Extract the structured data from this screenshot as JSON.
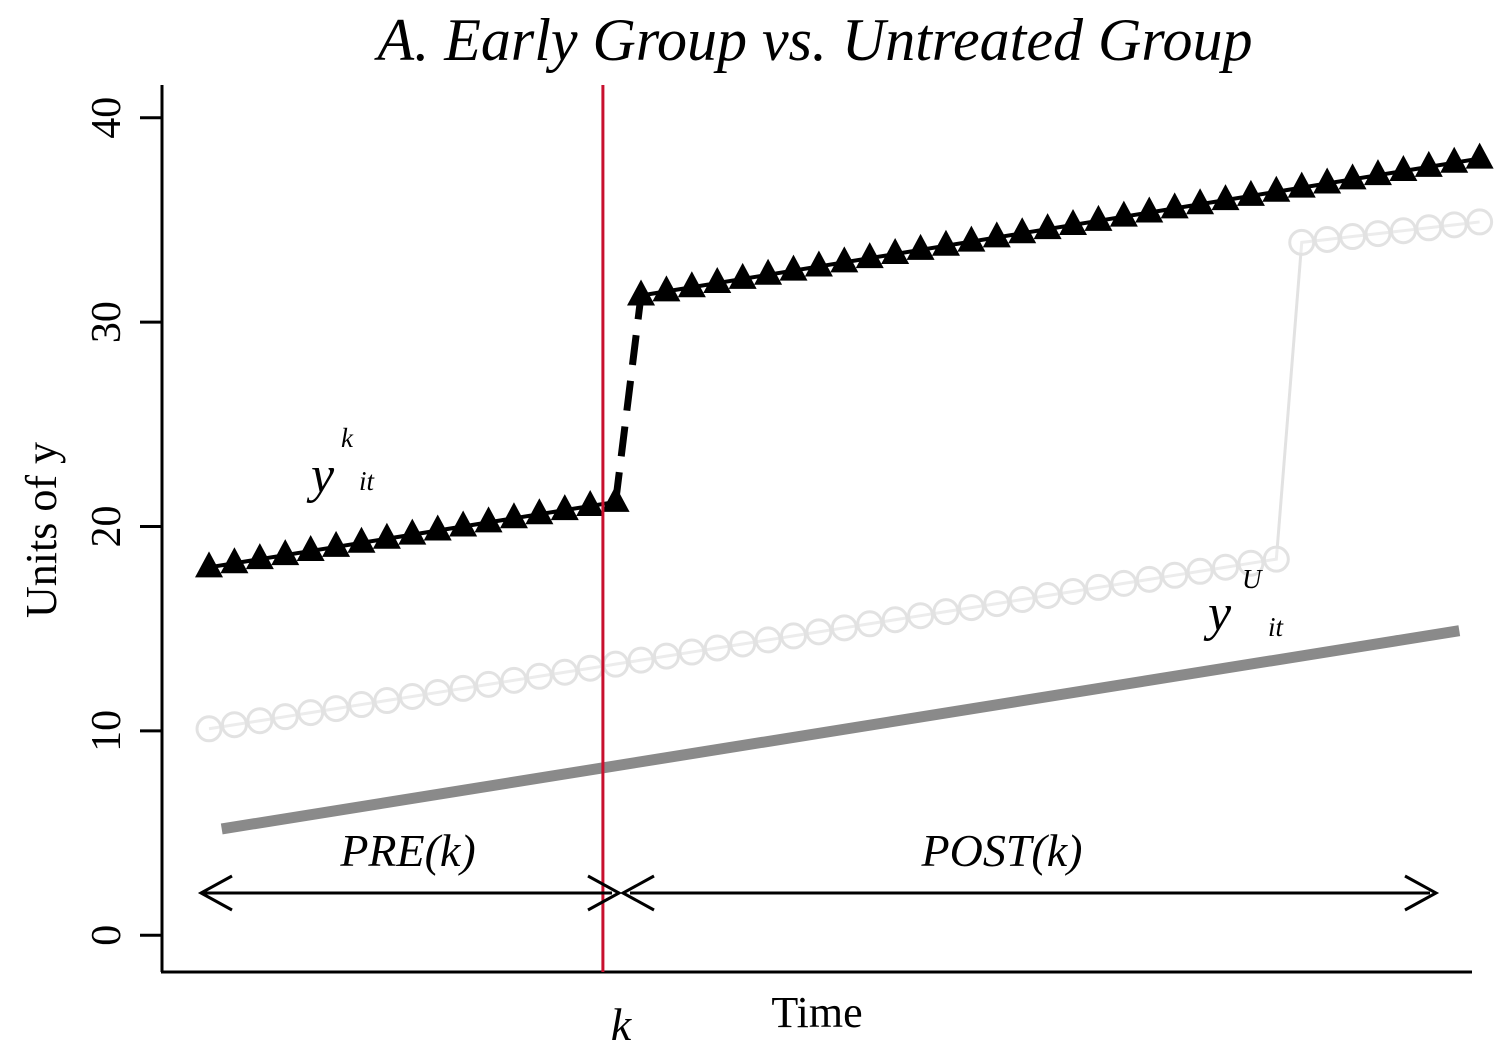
{
  "chart_data": {
    "type": "line",
    "title": "A. Early Group vs. Untreated Group",
    "xlabel": "Time",
    "ylabel": "Units of y",
    "ylim": [
      -1.8,
      41.6
    ],
    "xlim": [
      -0.85,
      50.7
    ],
    "yticks": [
      0,
      10,
      20,
      30,
      40
    ],
    "x_tick_label": "k",
    "x_tick_value": 16.5,
    "treatment_line": {
      "x": 16.5,
      "color": "#c8102e"
    },
    "grid": false,
    "legend": "none",
    "series": [
      {
        "key": "early",
        "marker": "triangle",
        "color": "#000000",
        "x_start": 1,
        "x_end": 51,
        "pre": {
          "x_end": 17,
          "y_start": 18.0,
          "y_end": 21.2
        },
        "post": {
          "x_start": 18,
          "y_start": 31.3,
          "y_end": 38.0
        }
      },
      {
        "key": "late",
        "marker": "circle",
        "color": "#e2e2e2",
        "x_start": 1,
        "x_end": 51,
        "pre": {
          "x_end": 43,
          "y_start": 10.1,
          "y_end": 18.4
        },
        "post": {
          "x_start": 44,
          "y_start": 33.9,
          "y_end": 34.9
        }
      },
      {
        "key": "untreated",
        "marker": "none",
        "color": "#8a8a8a",
        "x_start": 1.5,
        "x_end": 50.2,
        "y_start": 5.2,
        "y_end": 14.9
      }
    ],
    "annotations": {
      "yk": {
        "base": "y",
        "sup": "k",
        "sub": "it"
      },
      "yu": {
        "base": "y",
        "sup": "U",
        "sub": "it"
      },
      "pre": "PRE(k)",
      "post": "POST(k)"
    }
  }
}
